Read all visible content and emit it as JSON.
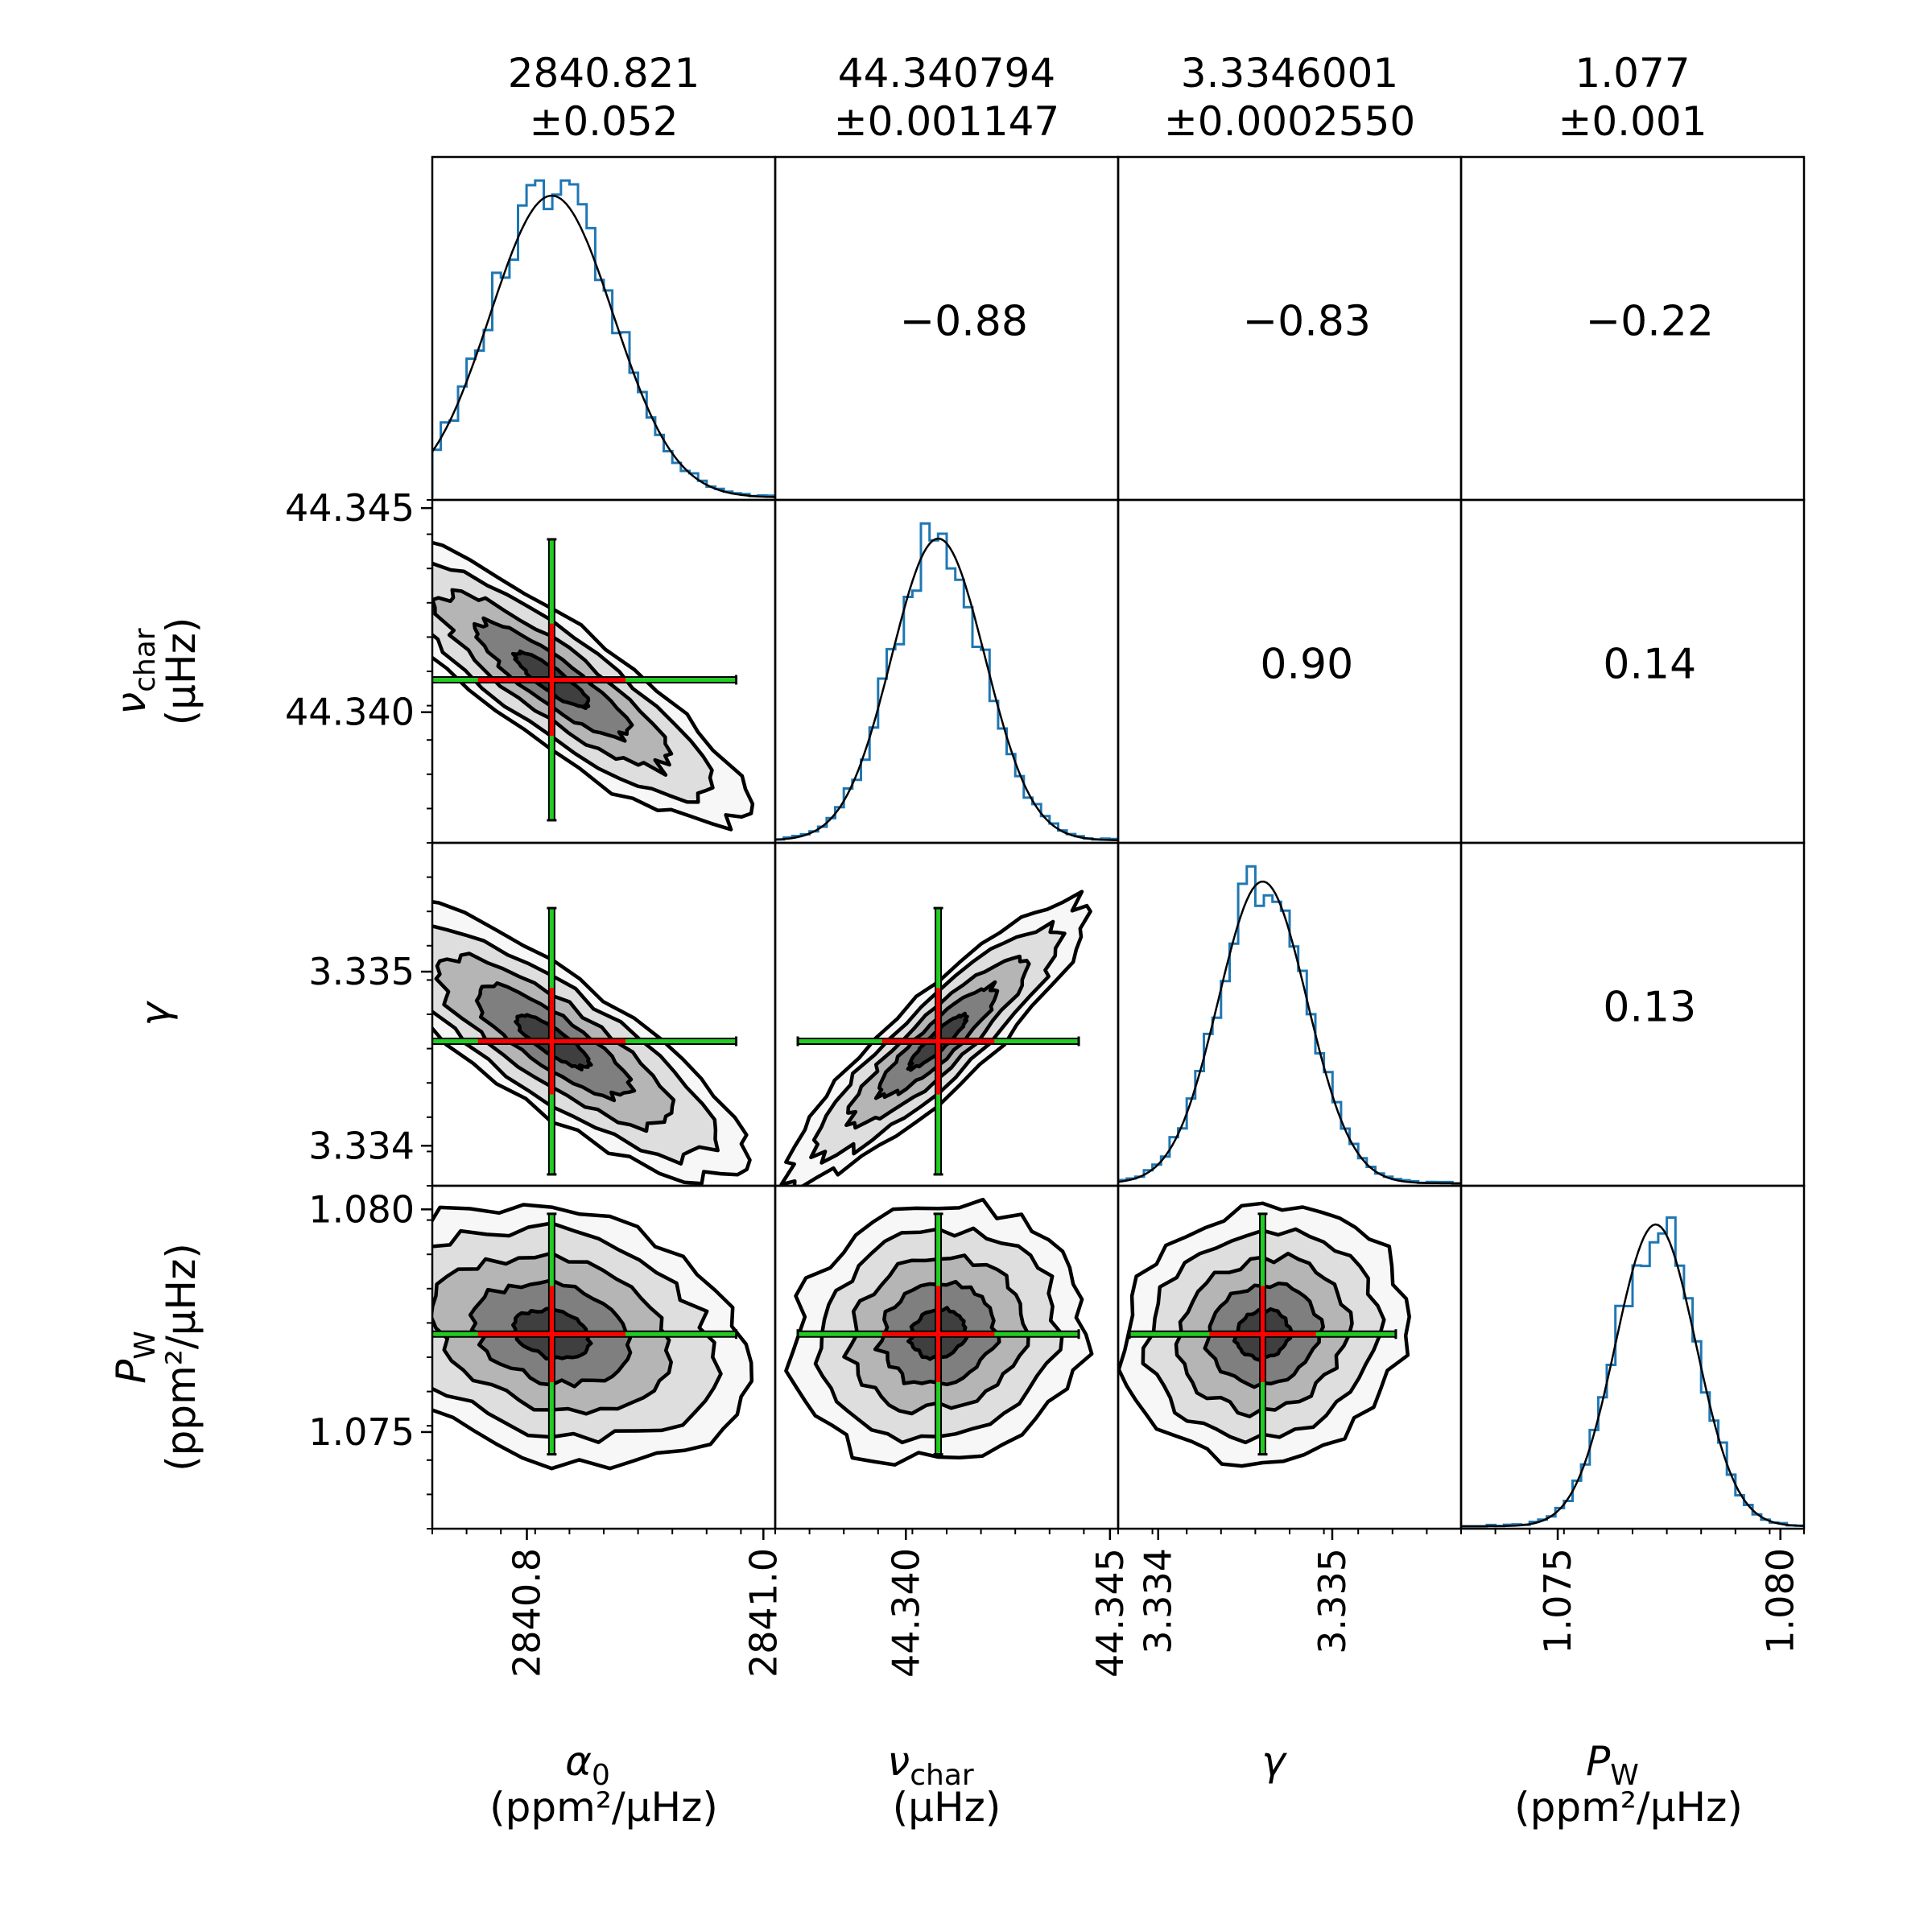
{
  "chart_data": {
    "type": "corner",
    "parameters": [
      {
        "key": "alpha0",
        "symbol": "α",
        "subscript": "0",
        "unit_line": "(ppm²/μHz)",
        "median": "2840.821",
        "uncertainty": "±0.052",
        "range": [
          2840.72,
          2841.01
        ],
        "ticks": [
          2840.8,
          2841.0
        ],
        "tick_labels": [
          "2840.8",
          "2841.0"
        ],
        "center": 2840.821,
        "sigma": 0.052
      },
      {
        "key": "nu_char",
        "symbol": "ν",
        "subscript": "char",
        "unit_line": "(μHz)",
        "median": "44.340794",
        "uncertainty": "±0.001147",
        "range": [
          44.3368,
          44.3452
        ],
        "ticks": [
          44.34,
          44.345
        ],
        "tick_labels": [
          "44.340",
          "44.345"
        ],
        "center": 44.340794,
        "sigma": 0.001147
      },
      {
        "key": "gamma",
        "symbol": "γ",
        "subscript": "",
        "unit_line": "",
        "median": "3.3346001",
        "uncertainty": "±0.0002550",
        "range": [
          3.33377,
          3.33574
        ],
        "ticks": [
          3.334,
          3.335
        ],
        "tick_labels": [
          "3.334",
          "3.335"
        ],
        "center": 3.3346001,
        "sigma": 0.000255
      },
      {
        "key": "P_W",
        "symbol": "P",
        "subscript": "W",
        "unit_line": "(ppm²/μHz)",
        "median": "1.077",
        "uncertainty": "±0.001",
        "range": [
          1.07283,
          1.08053
        ],
        "ticks": [
          1.075,
          1.08
        ],
        "tick_labels": [
          "1.075",
          "1.080"
        ],
        "center": 1.0772,
        "sigma": 0.0009
      }
    ],
    "correlations": [
      {
        "row": 0,
        "col": 1,
        "value": "−0.88"
      },
      {
        "row": 0,
        "col": 2,
        "value": "−0.83"
      },
      {
        "row": 0,
        "col": 3,
        "value": "−0.22"
      },
      {
        "row": 1,
        "col": 2,
        "value": "0.90"
      },
      {
        "row": 1,
        "col": 3,
        "value": "0.14"
      },
      {
        "row": 2,
        "col": 3,
        "value": "0.13"
      }
    ],
    "colors": {
      "histogram": "#1f77b4",
      "gaussian_fit": "#000000",
      "errorbar_outer": "#22cc22",
      "errorbar_inner": "#ff0000",
      "contour_levels": [
        "#f7f7f7",
        "#dedede",
        "#b5b5b5",
        "#7f7f7f",
        "#3f3f3f"
      ]
    }
  }
}
